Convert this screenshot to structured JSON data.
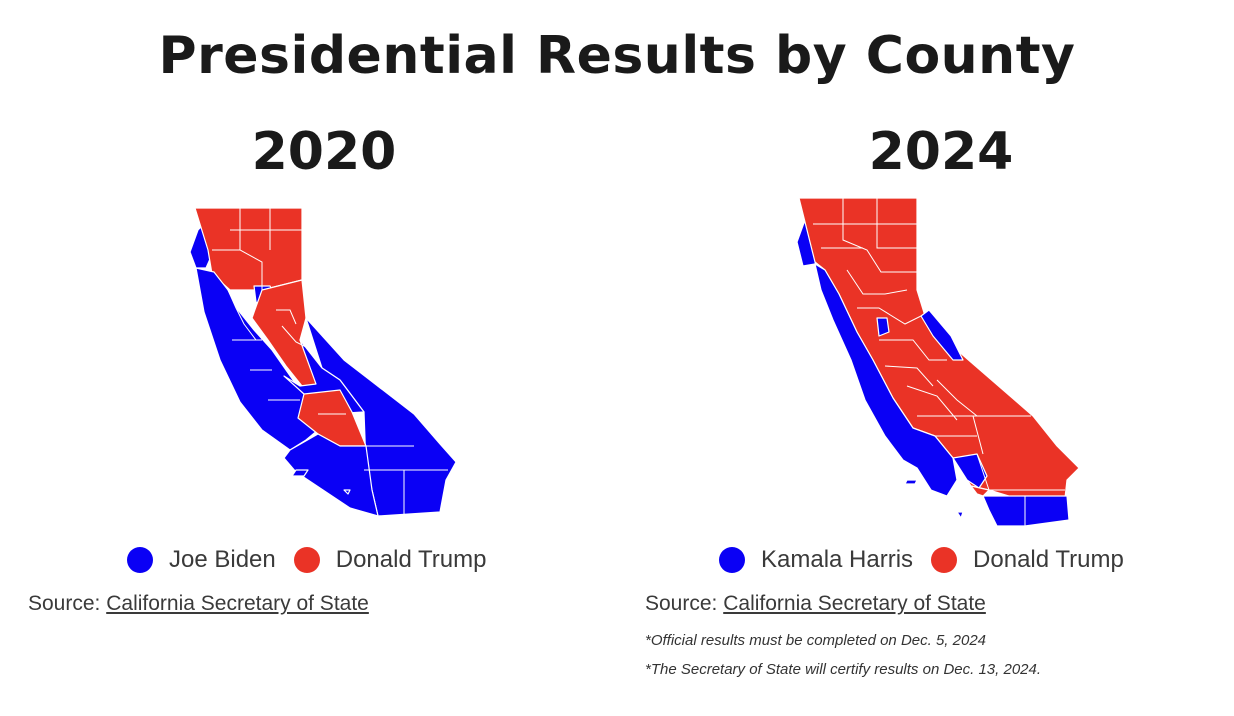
{
  "title": "Presidential Results by County",
  "colors": {
    "dem": "#0a00f5",
    "rep": "#ea3326",
    "border": "#ffffff"
  },
  "maps": [
    {
      "year": "2020",
      "legend": [
        {
          "label": "Joe Biden",
          "party": "dem"
        },
        {
          "label": "Donald Trump",
          "party": "rep"
        }
      ],
      "source_prefix": "Source:",
      "source_link": "California Secretary of State",
      "notes": []
    },
    {
      "year": "2024",
      "legend": [
        {
          "label": "Kamala Harris",
          "party": "dem"
        },
        {
          "label": "Donald Trump",
          "party": "rep"
        }
      ],
      "source_prefix": "Source:",
      "source_link": "California Secretary of State",
      "notes": [
        "*Official results must be completed on Dec. 5, 2024",
        "*The Secretary of State will certify results on Dec. 13, 2024."
      ]
    }
  ]
}
